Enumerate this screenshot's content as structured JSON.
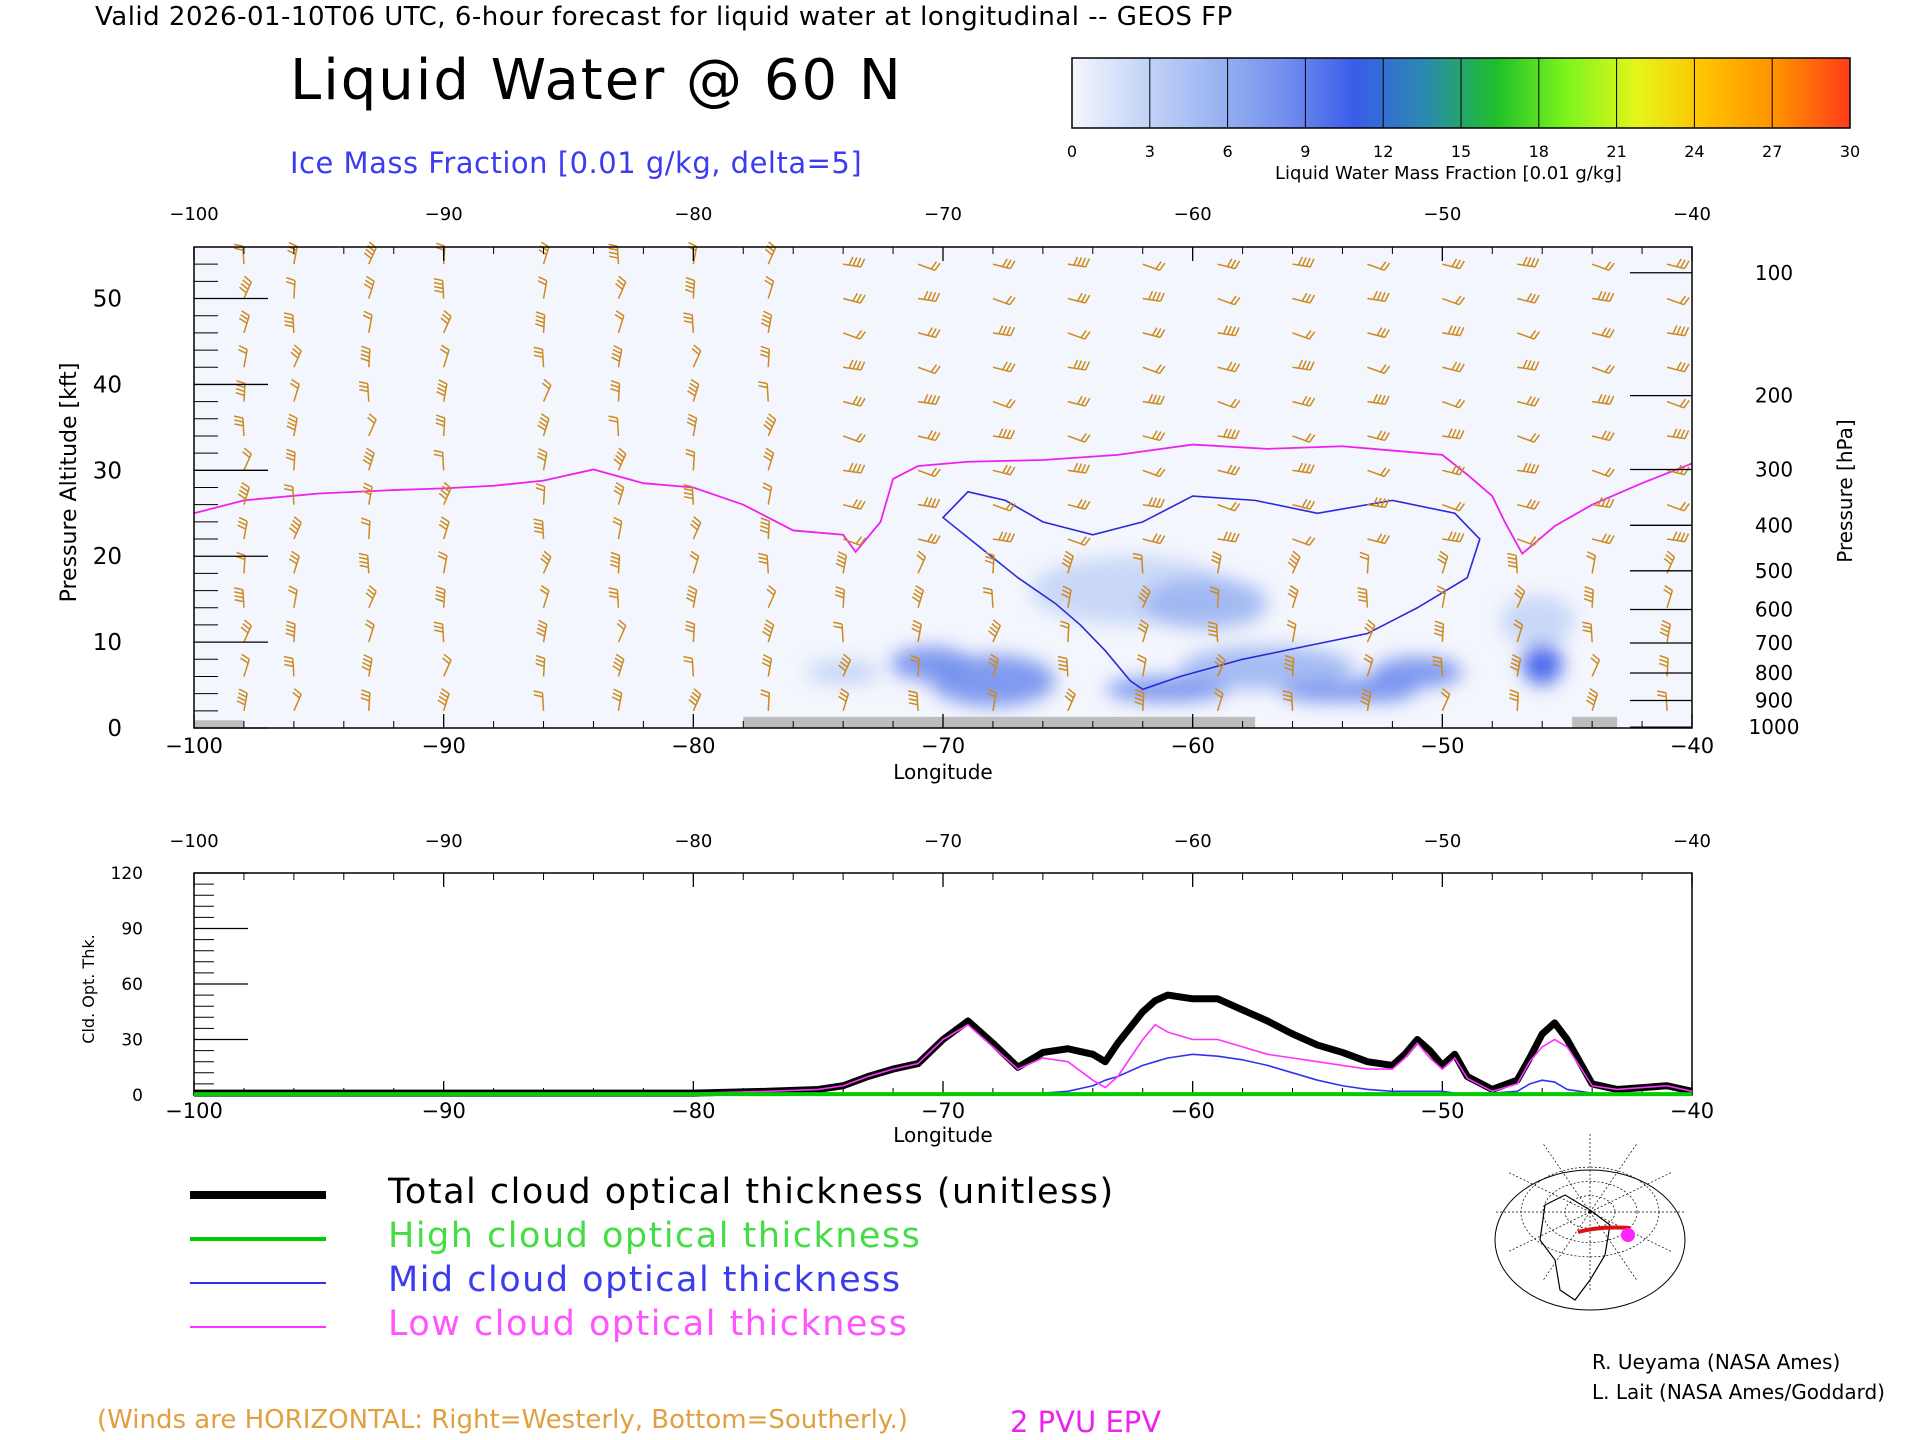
{
  "header": {
    "line": "Valid 2026-01-10T06 UTC, 6-hour forecast for liquid water at longitudinal -- GEOS FP",
    "title": "Liquid Water @ 60 N",
    "ice_label": "Ice Mass Fraction [0.01 g/kg, delta=5]"
  },
  "colorbar": {
    "caption": "Liquid Water Mass Fraction [0.01 g/kg]",
    "ticks": [
      "0",
      "3",
      "6",
      "9",
      "12",
      "15",
      "18",
      "21",
      "24",
      "27",
      "30"
    ],
    "colors": [
      "#f4f6fd",
      "#c5d5f7",
      "#9cb5f2",
      "#7390ee",
      "#3a5cea",
      "#2a8ab0",
      "#1fbf2a",
      "#7ef51c",
      "#e6f51a",
      "#ffbf00",
      "#ff8f00",
      "#ff3b1a"
    ]
  },
  "chart_data": [
    {
      "type": "heatmap",
      "title": "Liquid Water @ 60 N",
      "xlabel": "Longitude",
      "ylabel": "Pressure Altitude [kft]",
      "y2label": "Pressure [hPa]",
      "xlim": [
        -100,
        -40
      ],
      "ylim": [
        0,
        56
      ],
      "x_ticks": [
        "-100",
        "-90",
        "-80",
        "-70",
        "-60",
        "-50",
        "-40"
      ],
      "y_ticks": [
        "0",
        "10",
        "20",
        "30",
        "40",
        "50"
      ],
      "pressure_ticks": [
        {
          "label": "100",
          "kft": 53.0
        },
        {
          "label": "200",
          "kft": 38.7
        },
        {
          "label": "300",
          "kft": 30.1
        },
        {
          "label": "400",
          "kft": 23.6
        },
        {
          "label": "500",
          "kft": 18.3
        },
        {
          "label": "600",
          "kft": 13.8
        },
        {
          "label": "700",
          "kft": 9.9
        },
        {
          "label": "800",
          "kft": 6.4
        },
        {
          "label": "900",
          "kft": 3.2
        },
        {
          "label": "1000",
          "kft": 0.1
        }
      ],
      "liquid_water_blobs": [
        {
          "lon": -68.0,
          "kft": 5.5,
          "lon_half": 2.5,
          "kft_half": 3.0,
          "value": 8
        },
        {
          "lon": -70.5,
          "kft": 7.5,
          "lon_half": 1.6,
          "kft_half": 2.0,
          "value": 9
        },
        {
          "lon": -62.5,
          "kft": 16.0,
          "lon_half": 4.0,
          "kft_half": 4.0,
          "value": 3
        },
        {
          "lon": -59.5,
          "kft": 14.5,
          "lon_half": 2.5,
          "kft_half": 3.0,
          "value": 7
        },
        {
          "lon": -61.0,
          "kft": 4.5,
          "lon_half": 2.5,
          "kft_half": 1.5,
          "value": 8
        },
        {
          "lon": -57.0,
          "kft": 7.0,
          "lon_half": 3.5,
          "kft_half": 2.5,
          "value": 5
        },
        {
          "lon": -54.5,
          "kft": 4.2,
          "lon_half": 2.0,
          "kft_half": 1.2,
          "value": 9
        },
        {
          "lon": -52.5,
          "kft": 4.5,
          "lon_half": 1.5,
          "kft_half": 1.5,
          "value": 10
        },
        {
          "lon": -51.0,
          "kft": 6.5,
          "lon_half": 1.8,
          "kft_half": 1.8,
          "value": 9
        },
        {
          "lon": -46.0,
          "kft": 7.5,
          "lon_half": 0.8,
          "kft_half": 2.5,
          "value": 11
        },
        {
          "lon": -46.2,
          "kft": 12.5,
          "lon_half": 1.5,
          "kft_half": 3.0,
          "value": 4
        },
        {
          "lon": -74.0,
          "kft": 6.5,
          "lon_half": 1.5,
          "kft_half": 1.5,
          "value": 3
        }
      ],
      "epv_2pvu": [
        [
          -100,
          25.0
        ],
        [
          -98,
          26.5
        ],
        [
          -95,
          27.3
        ],
        [
          -92,
          27.7
        ],
        [
          -90,
          27.9
        ],
        [
          -88,
          28.2
        ],
        [
          -86,
          28.8
        ],
        [
          -84,
          30.1
        ],
        [
          -82,
          28.5
        ],
        [
          -80,
          28.0
        ],
        [
          -78,
          26.0
        ],
        [
          -76,
          23.0
        ],
        [
          -74,
          22.5
        ],
        [
          -73.5,
          20.5
        ],
        [
          -72.5,
          24.0
        ],
        [
          -72,
          29.0
        ],
        [
          -71,
          30.5
        ],
        [
          -69,
          31.0
        ],
        [
          -66,
          31.2
        ],
        [
          -63,
          31.8
        ],
        [
          -60,
          33.0
        ],
        [
          -57,
          32.5
        ],
        [
          -54,
          32.8
        ],
        [
          -52,
          32.3
        ],
        [
          -50,
          31.8
        ],
        [
          -49,
          29.5
        ],
        [
          -48,
          27.0
        ],
        [
          -47.5,
          24.0
        ],
        [
          -46.8,
          20.3
        ],
        [
          -45.5,
          23.5
        ],
        [
          -44,
          26.0
        ],
        [
          -42,
          28.5
        ],
        [
          -40,
          30.8
        ]
      ],
      "ice_contour": [
        [
          -70,
          24.5
        ],
        [
          -68.5,
          21.0
        ],
        [
          -67.0,
          17.5
        ],
        [
          -65.5,
          14.5
        ],
        [
          -64.5,
          12.0
        ],
        [
          -63.5,
          9.0
        ],
        [
          -62.5,
          5.5
        ],
        [
          -62.0,
          4.5
        ],
        [
          -60.5,
          6.0
        ],
        [
          -58.0,
          8.0
        ],
        [
          -55.5,
          9.5
        ],
        [
          -53.0,
          11.0
        ],
        [
          -51.0,
          14.0
        ],
        [
          -49.0,
          17.5
        ],
        [
          -48.5,
          22.0
        ],
        [
          -49.5,
          25.0
        ],
        [
          -52.0,
          26.5
        ],
        [
          -55.0,
          25.0
        ],
        [
          -57.5,
          26.5
        ],
        [
          -60.0,
          27.0
        ],
        [
          -62.0,
          24.0
        ],
        [
          -64.0,
          22.5
        ],
        [
          -66.0,
          24.0
        ],
        [
          -67.5,
          26.5
        ],
        [
          -69.0,
          27.5
        ]
      ],
      "wind_columns_lon": [
        -98,
        -96,
        -93,
        -90,
        -86,
        -83,
        -80,
        -77,
        -74,
        -71,
        -68,
        -65,
        -62,
        -59,
        -56,
        -53,
        -50,
        -47,
        -44,
        -41
      ]
    },
    {
      "type": "line",
      "xlabel": "Longitude",
      "ylabel": "Cld. Opt. Thk.",
      "xlim": [
        -100,
        -40
      ],
      "ylim": [
        0,
        120
      ],
      "x_ticks": [
        "-100",
        "-90",
        "-80",
        "-70",
        "-60",
        "-50",
        "-40"
      ],
      "y_ticks": [
        "0",
        "30",
        "60",
        "90",
        "120"
      ],
      "x": [
        -100,
        -95,
        -90,
        -85,
        -80,
        -77,
        -75,
        -74,
        -73,
        -72,
        -71,
        -70,
        -69,
        -68,
        -67,
        -66,
        -65,
        -64,
        -63.5,
        -63,
        -62,
        -61.5,
        -61,
        -60,
        -59,
        -58,
        -57,
        -56,
        -55,
        -54,
        -53,
        -52,
        -51.5,
        -51,
        -50.5,
        -50,
        -49.5,
        -49,
        -48,
        -47,
        -46.5,
        -46,
        -45.5,
        -45,
        -44,
        -43,
        -42,
        -41,
        -40
      ],
      "series": [
        {
          "name": "Total cloud optical thickness (unitless)",
          "color": "#000000",
          "width": 7,
          "values": [
            1,
            1,
            1,
            1,
            1,
            2,
            3,
            5,
            10,
            14,
            17,
            30,
            40,
            28,
            15,
            23,
            25,
            22,
            18,
            28,
            45,
            51,
            54,
            52,
            52,
            46,
            40,
            33,
            27,
            23,
            18,
            16,
            22,
            30,
            24,
            16,
            22,
            10,
            3,
            8,
            20,
            33,
            39,
            30,
            6,
            3,
            4,
            5,
            2
          ]
        },
        {
          "name": "High cloud optical thickness",
          "color": "#00cc00",
          "width": 4,
          "values": [
            0.5,
            0.5,
            0.5,
            0.5,
            0.5,
            0.5,
            0.5,
            0.5,
            0.5,
            0.5,
            0.5,
            0.5,
            0.5,
            0.5,
            0.5,
            0.5,
            0.5,
            0.5,
            0.5,
            0.5,
            0.5,
            0.5,
            0.5,
            0.5,
            0.5,
            0.5,
            0.5,
            0.5,
            0.5,
            0.5,
            0.5,
            0.5,
            0.5,
            0.5,
            0.5,
            0.5,
            0.5,
            0.5,
            0.5,
            0.5,
            0.5,
            0.5,
            0.5,
            0.5,
            0.5,
            0.5,
            0.5,
            0.5,
            0.5
          ]
        },
        {
          "name": "Mid cloud optical thickness",
          "color": "#3333ee",
          "width": 1.6,
          "values": [
            0,
            0,
            0,
            0,
            0,
            0,
            0,
            0,
            0,
            0,
            0,
            0,
            1,
            1,
            1,
            1,
            2,
            5,
            8,
            10,
            16,
            18,
            20,
            22,
            21,
            19,
            16,
            12,
            8,
            5,
            3,
            2,
            2,
            2,
            2,
            2,
            1,
            1,
            1,
            2,
            6,
            8,
            7,
            3,
            1,
            0,
            0,
            0,
            0
          ]
        },
        {
          "name": "Low cloud optical thickness",
          "color": "#ff33ff",
          "width": 1.6,
          "values": [
            1,
            1,
            1,
            1,
            1,
            2,
            3,
            5,
            10,
            14,
            17,
            30,
            38,
            26,
            14,
            20,
            18,
            8,
            4,
            10,
            30,
            38,
            34,
            30,
            30,
            26,
            22,
            20,
            18,
            16,
            14,
            14,
            20,
            28,
            20,
            14,
            20,
            9,
            2,
            6,
            18,
            26,
            30,
            26,
            5,
            3,
            4,
            5,
            2
          ]
        }
      ]
    }
  ],
  "legend": {
    "total": "Total cloud optical thickness (unitless)",
    "high": "High cloud optical thickness",
    "mid": "Mid cloud optical thickness",
    "low": "Low cloud optical thickness",
    "total_color": "#000000",
    "high_color": "#00cc00",
    "mid_color": "#3333ee",
    "low_color": "#ff33ff"
  },
  "footer": {
    "winds_note": "(Winds are HORIZONTAL: Right=Westerly, Bottom=Southerly.)",
    "epv_note": "2 PVU EPV",
    "credit1": "R. Ueyama (NASA Ames)",
    "credit2": "L. Lait (NASA Ames/Goddard)"
  }
}
